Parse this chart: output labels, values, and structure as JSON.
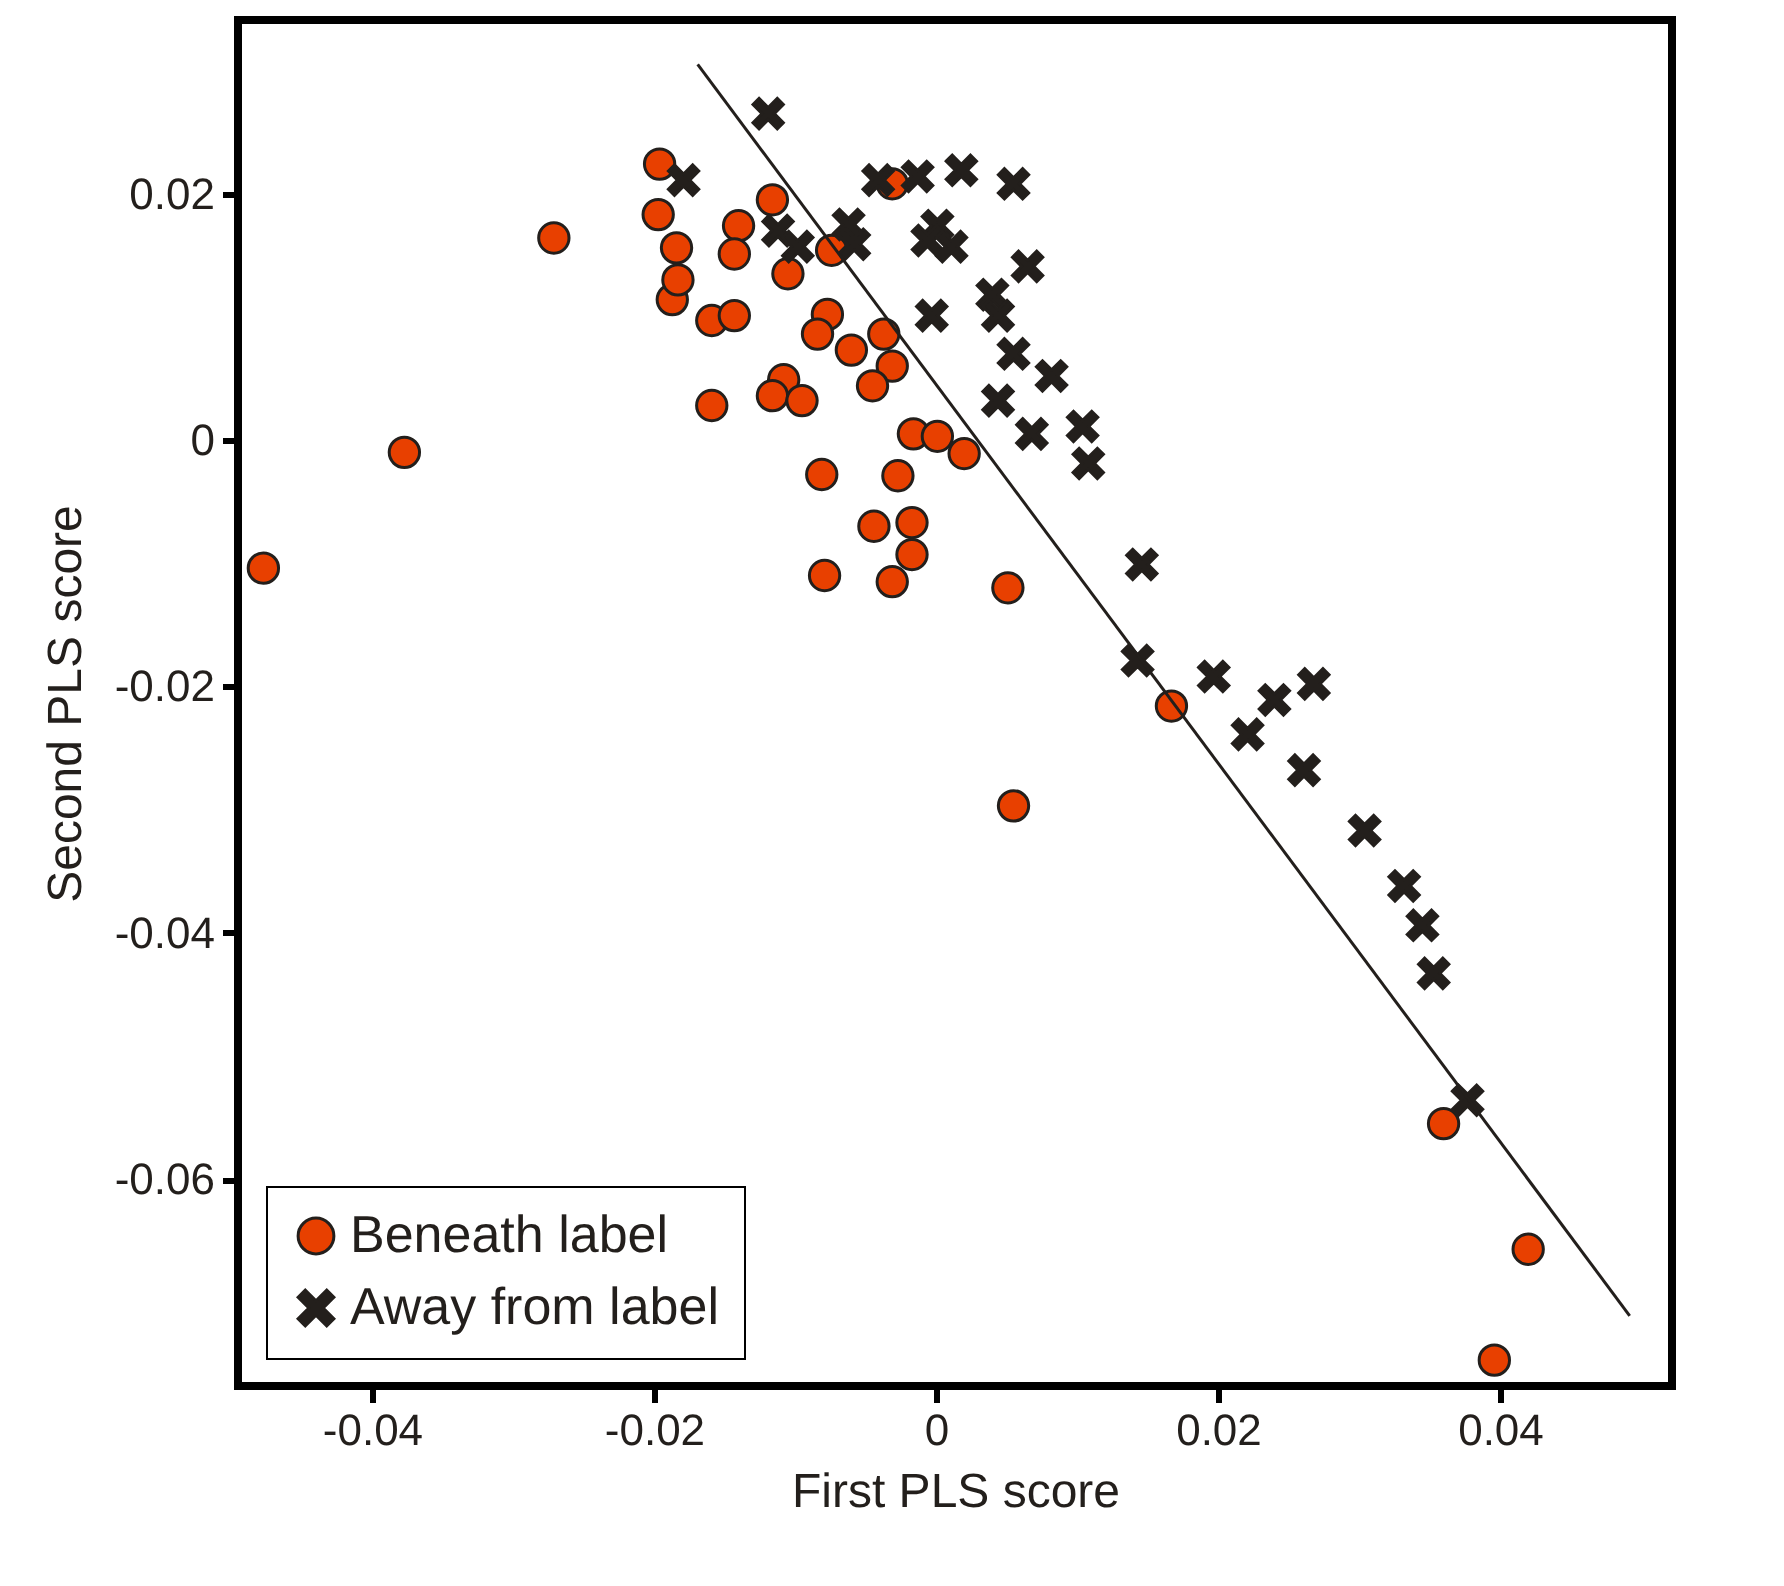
{
  "chart_data": {
    "type": "scatter",
    "xlabel": "First PLS score",
    "ylabel": "Second PLS score",
    "xlim": [
      -0.0495,
      0.0522
    ],
    "ylim": [
      -0.0768,
      0.0341
    ],
    "xticks": [
      -0.04,
      -0.02,
      0,
      0.02,
      0.04
    ],
    "yticks": [
      -0.06,
      -0.04,
      -0.02,
      0,
      0.02
    ],
    "grid": false,
    "legend": "bottom left",
    "series": [
      {
        "name": "Beneath label",
        "color": "#e84000",
        "marker": "circle",
        "x": [
          -0.0477,
          -0.0377,
          -0.0271,
          -0.0196,
          -0.0197,
          -0.0184,
          -0.0187,
          -0.0183,
          -0.014,
          -0.0143,
          -0.0159,
          -0.0143,
          -0.0116,
          -0.0105,
          -0.0077,
          -0.0084,
          -0.006,
          -0.0037,
          -0.0031,
          -0.0045,
          -0.0031,
          -0.0074,
          -0.0159,
          -0.0108,
          -0.0116,
          -0.0095,
          -0.0016,
          0.0001,
          0.002,
          -0.0081,
          -0.0027,
          -0.0044,
          -0.0017,
          -0.0017,
          -0.0079,
          -0.0031,
          0.0051,
          0.0167,
          0.0055,
          0.036,
          0.042,
          0.0396
        ],
        "values": [
          -0.0104,
          -0.001,
          0.0164,
          0.0224,
          0.0183,
          0.0156,
          0.0114,
          0.013,
          0.0174,
          0.0151,
          0.0097,
          0.0101,
          0.0195,
          0.0135,
          0.0102,
          0.0086,
          0.0073,
          0.0086,
          0.006,
          0.0044,
          0.0208,
          0.0154,
          0.0028,
          0.0049,
          0.0036,
          0.0032,
          0.0005,
          0.0003,
          -0.0011,
          -0.0028,
          -0.0029,
          -0.007,
          -0.0067,
          -0.0093,
          -0.011,
          -0.0115,
          -0.012,
          -0.0216,
          -0.0297,
          -0.0555,
          -0.0657,
          -0.0747
        ]
      },
      {
        "name": "Away from label",
        "color": "#231f1c",
        "marker": "cross",
        "x": [
          -0.0119,
          -0.0179,
          -0.0041,
          -0.0013,
          0.0018,
          0.0055,
          -0.0112,
          -0.0098,
          -0.0062,
          -0.0058,
          0.0001,
          -0.0006,
          0.0011,
          0.0065,
          -0.0003,
          0.004,
          0.0044,
          0.0055,
          0.0044,
          0.0068,
          0.0082,
          0.0104,
          0.0108,
          0.0146,
          0.0143,
          0.0197,
          0.024,
          0.0268,
          0.0221,
          0.0261,
          0.0304,
          0.0332,
          0.0345,
          0.0353,
          0.0377
        ],
        "values": [
          0.0265,
          0.0211,
          0.0211,
          0.0214,
          0.0219,
          0.0208,
          0.017,
          0.0157,
          0.0175,
          0.0159,
          0.0174,
          0.0162,
          0.0157,
          0.0141,
          0.0101,
          0.0118,
          0.0101,
          0.007,
          0.0032,
          0.0005,
          0.0052,
          0.0011,
          -0.0019,
          -0.0101,
          -0.0179,
          -0.0192,
          -0.0211,
          -0.0198,
          -0.0239,
          -0.0268,
          -0.0317,
          -0.0362,
          -0.0394,
          -0.0433,
          -0.0536
        ]
      },
      {
        "type": "line",
        "color": "#231f1c",
        "line_style": "solid",
        "x": [
          -0.0169,
          0.0492
        ],
        "values": [
          0.0305,
          -0.0711
        ]
      }
    ]
  }
}
